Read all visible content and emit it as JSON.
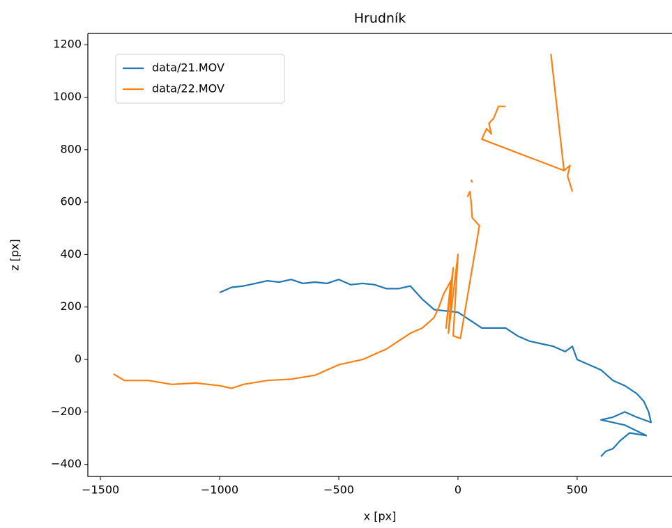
{
  "chart_data": {
    "type": "line",
    "title": "Hrudník",
    "xlabel": "x [px]",
    "ylabel": "z [px]",
    "xlim": [
      -1553,
      898
    ],
    "ylim": [
      -446,
      1243
    ],
    "xticks": [
      {
        "value": -1500,
        "label": "−1500"
      },
      {
        "value": -1000,
        "label": "−1000"
      },
      {
        "value": -500,
        "label": "−500"
      },
      0,
      500
    ],
    "yticks": [
      {
        "value": -400,
        "label": "−400"
      },
      {
        "value": -200,
        "label": "−200"
      },
      0,
      200,
      400,
      600,
      800,
      1000,
      1200
    ],
    "legend": "upper left",
    "grid": false,
    "series": [
      {
        "name": "data/21.MOV",
        "color": "#1f77b4",
        "x": [
          -1000,
          -950,
          -900,
          -850,
          -800,
          -750,
          -700,
          -650,
          -600,
          -550,
          -500,
          -450,
          -400,
          -350,
          -300,
          -250,
          -200,
          -150,
          -100,
          -50,
          0,
          50,
          100,
          150,
          200,
          250,
          300,
          350,
          400,
          450,
          480,
          500,
          550,
          600,
          650,
          700,
          750,
          780,
          800,
          810,
          750,
          700,
          650,
          600,
          700,
          790,
          720,
          680,
          650,
          620,
          600
        ],
        "values": [
          255,
          275,
          280,
          290,
          300,
          295,
          305,
          290,
          295,
          290,
          305,
          285,
          290,
          285,
          270,
          270,
          280,
          230,
          190,
          185,
          180,
          150,
          120,
          120,
          120,
          90,
          70,
          60,
          50,
          30,
          50,
          0,
          -20,
          -40,
          -80,
          -100,
          -130,
          -160,
          -200,
          -240,
          -220,
          -200,
          -220,
          -230,
          -250,
          -290,
          -280,
          -310,
          -340,
          -350,
          -370
        ]
      },
      {
        "name": "data/22.MOV",
        "color": "#ff7f0e",
        "x": [
          -1445,
          -1400,
          -1300,
          -1200,
          -1100,
          -1000,
          -950,
          -900,
          -800,
          -700,
          -600,
          -500,
          -400,
          -300,
          -250,
          -200,
          -150,
          -100,
          -80,
          -60,
          -30,
          -50,
          -20,
          -40,
          0,
          -20,
          10,
          90,
          60,
          55,
          50,
          40,
          null,
          55,
          60,
          null,
          200,
          170,
          150,
          130,
          140,
          120,
          100,
          445,
          470,
          460,
          480,
          null,
          390,
          445
        ],
        "values": [
          -55,
          -80,
          -80,
          -95,
          -90,
          -100,
          -110,
          -95,
          -80,
          -75,
          -60,
          -20,
          0,
          40,
          70,
          100,
          120,
          160,
          200,
          250,
          300,
          120,
          350,
          100,
          400,
          90,
          80,
          510,
          540,
          600,
          640,
          620,
          null,
          685,
          675,
          null,
          965,
          965,
          920,
          900,
          860,
          880,
          840,
          720,
          740,
          700,
          640,
          null,
          1165,
          720
        ]
      }
    ]
  }
}
